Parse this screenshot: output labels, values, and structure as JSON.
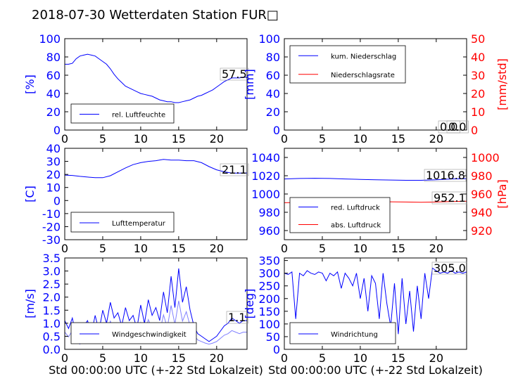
{
  "title": "2018-07-30 Wetterdaten Station FUR□",
  "colors": {
    "blue": "#0000ff",
    "red": "#ff0000",
    "lightblue": "#8080ff"
  },
  "chart_data": [
    {
      "id": "humidity",
      "type": "line",
      "xlabel": "",
      "ylabel": "[%]",
      "ylabel_color": "blue",
      "xlim": [
        0,
        24
      ],
      "ylim": [
        0,
        100
      ],
      "yticks": [
        0,
        20,
        40,
        60,
        80,
        100
      ],
      "xticks": [
        0,
        5,
        10,
        15,
        20
      ],
      "legend": "bottom-left",
      "annotation": "57.5",
      "series": [
        {
          "name": "rel. Luftfeuchte",
          "color": "blue",
          "x": [
            0,
            0.5,
            1,
            1.5,
            2,
            2.5,
            3,
            3.5,
            4,
            4.5,
            5,
            5.5,
            6,
            6.5,
            7,
            7.5,
            8,
            8.5,
            9,
            9.5,
            10,
            10.5,
            11,
            11.5,
            12,
            12.5,
            13,
            13.5,
            14,
            14.5,
            15,
            15.5,
            16,
            16.5,
            17,
            17.5,
            18,
            18.5,
            19,
            19.5,
            20,
            20.5,
            21,
            21.5,
            22,
            22.5,
            23,
            23.5,
            24
          ],
          "y": [
            72,
            72,
            73,
            78,
            81,
            82,
            83,
            82,
            81,
            78,
            75,
            72,
            67,
            61,
            56,
            52,
            48,
            46,
            44,
            42,
            40,
            39,
            38,
            37,
            35,
            33,
            32,
            31,
            31,
            30,
            30,
            31,
            32,
            33,
            35,
            37,
            38,
            40,
            42,
            44,
            47,
            50,
            53,
            55,
            57,
            57,
            57,
            58,
            57.5
          ]
        }
      ]
    },
    {
      "id": "precip",
      "type": "line",
      "xlabel": "",
      "ylabel": "[mm]",
      "ylabel_color": "blue",
      "ylabel_right": "[mm/std]",
      "ylabel_right_color": "red",
      "xlim": [
        0,
        24
      ],
      "ylim": [
        0,
        100
      ],
      "ylim_right": [
        0,
        50
      ],
      "yticks": [
        0,
        20,
        40,
        60,
        80,
        100
      ],
      "yticks_right": [
        0,
        10,
        20,
        30,
        40,
        50
      ],
      "xticks": [
        0,
        5,
        10,
        15,
        20
      ],
      "legend": "top-left",
      "annotations": [
        "0.0",
        "0.0"
      ],
      "series": [
        {
          "name": "kum. Niederschlag",
          "color": "blue",
          "x": [
            0,
            24
          ],
          "y": [
            0,
            0
          ]
        },
        {
          "name": "Niederschlagsrate",
          "color": "red",
          "x": [
            0,
            24
          ],
          "y": [
            0,
            0
          ]
        }
      ]
    },
    {
      "id": "temperature",
      "type": "line",
      "xlabel": "",
      "ylabel": "[C]",
      "ylabel_color": "blue",
      "xlim": [
        0,
        24
      ],
      "ylim": [
        -30,
        40
      ],
      "yticks": [
        -30,
        -20,
        -10,
        0,
        10,
        20,
        30,
        40
      ],
      "xticks": [
        0,
        5,
        10,
        15,
        20
      ],
      "legend": "bottom-left",
      "annotation": "21.1",
      "series": [
        {
          "name": "Lufttemperatur",
          "color": "blue",
          "x": [
            0,
            1,
            2,
            3,
            4,
            5,
            6,
            7,
            8,
            9,
            10,
            11,
            12,
            13,
            14,
            15,
            16,
            17,
            18,
            19,
            20,
            21,
            22,
            23,
            24
          ],
          "y": [
            19.5,
            19.2,
            18.5,
            18,
            17.5,
            17.5,
            19,
            22,
            25,
            27.5,
            29,
            30,
            30.5,
            31.5,
            31,
            31,
            30.5,
            30.5,
            29,
            26,
            23.5,
            22,
            21,
            21,
            21.1
          ]
        }
      ]
    },
    {
      "id": "pressure",
      "type": "line",
      "xlabel": "",
      "ylabel": "",
      "ylabel_right": "[hPa]",
      "ylabel_right_color": "red",
      "xlim": [
        0,
        24
      ],
      "ylim": [
        950,
        1050
      ],
      "ylim_right": [
        910,
        1010
      ],
      "yticks": [
        960,
        980,
        1000,
        1020,
        1040
      ],
      "yticks_right": [
        920,
        940,
        960,
        980,
        1000
      ],
      "xticks": [
        0,
        5,
        10,
        15,
        20
      ],
      "legend": "bottom-left",
      "annotations": [
        "1016.8",
        "952.1"
      ],
      "series": [
        {
          "name": "red. Luftdruck",
          "color": "blue",
          "x": [
            0,
            2,
            4,
            6,
            8,
            10,
            12,
            14,
            16,
            17,
            18,
            20,
            22,
            24
          ],
          "y": [
            1016.5,
            1017,
            1017.2,
            1017,
            1016.5,
            1016,
            1015.5,
            1015.3,
            1015,
            1015,
            1015,
            1015.5,
            1016.5,
            1016.8
          ]
        },
        {
          "name": "abs. Luftdruck",
          "color": "red",
          "x": [
            0,
            2,
            4,
            6,
            8,
            10,
            12,
            14,
            16,
            18,
            20,
            22,
            24
          ],
          "y": [
            950.5,
            950.8,
            951.2,
            952.3,
            952.5,
            952,
            951.8,
            951.5,
            951.2,
            951,
            951.2,
            951.8,
            952.1
          ]
        }
      ]
    },
    {
      "id": "windspeed",
      "type": "line",
      "xlabel": "Std 00:00:00 UTC (+-22 Std Lokalzeit)",
      "ylabel": "[m/s]",
      "ylabel_color": "blue",
      "xlim": [
        0,
        24
      ],
      "ylim": [
        0,
        3.5
      ],
      "yticks": [
        0.0,
        0.5,
        1.0,
        1.5,
        2.0,
        2.5,
        3.0,
        3.5
      ],
      "xticks": [
        0,
        5,
        10,
        15,
        20
      ],
      "legend": "bottom-center",
      "annotation": "1.1",
      "series": [
        {
          "name": "Windgeschwindigkeit",
          "color": "blue",
          "x": [
            0,
            0.5,
            1,
            1.5,
            2,
            2.5,
            3,
            3.5,
            4,
            4.5,
            5,
            5.5,
            6,
            6.5,
            7,
            7.5,
            8,
            8.5,
            9,
            9.5,
            10,
            10.5,
            11,
            11.5,
            12,
            12.5,
            13,
            13.5,
            14,
            14.5,
            15,
            15.5,
            16,
            16.5,
            17,
            17.5,
            18,
            18.5,
            19,
            19.5,
            20,
            20.5,
            21,
            21.5,
            22,
            22.5,
            23,
            23.5,
            24
          ],
          "y": [
            1.1,
            0.8,
            1.2,
            0.5,
            0.3,
            0.9,
            1.1,
            0.6,
            1.3,
            0.7,
            1.5,
            1.0,
            1.8,
            1.2,
            1.4,
            0.9,
            1.6,
            1.1,
            1.3,
            0.8,
            1.7,
            1.0,
            1.9,
            1.3,
            1.6,
            1.1,
            2.2,
            1.4,
            2.8,
            1.6,
            3.1,
            1.8,
            2.4,
            1.5,
            0.9,
            0.6,
            0.5,
            0.4,
            0.3,
            0.4,
            0.5,
            0.7,
            0.9,
            1.0,
            1.2,
            1.1,
            1.0,
            1.1,
            1.1
          ]
        }
      ]
    },
    {
      "id": "winddir",
      "type": "line",
      "xlabel": "Std 00:00:00 UTC (+-22 Std Lokalzeit)",
      "ylabel": "[deg]",
      "ylabel_color": "blue",
      "xlim": [
        0,
        24
      ],
      "ylim": [
        0,
        360
      ],
      "yticks": [
        0,
        50,
        100,
        150,
        200,
        250,
        300,
        350
      ],
      "xticks": [
        0,
        5,
        10,
        15,
        20
      ],
      "legend": "bottom-left",
      "annotation": "305.0",
      "series": [
        {
          "name": "Windrichtung",
          "color": "blue",
          "x": [
            0,
            0.5,
            1,
            1.5,
            2,
            2.5,
            3,
            3.5,
            4,
            4.5,
            5,
            5.5,
            6,
            6.5,
            7,
            7.5,
            8,
            8.5,
            9,
            9.5,
            10,
            10.5,
            11,
            11.5,
            12,
            12.5,
            13,
            13.5,
            14,
            14.5,
            15,
            15.5,
            16,
            16.5,
            17,
            17.5,
            18,
            18.5,
            19,
            19.5,
            20,
            20.5,
            21,
            21.5,
            22,
            22.5,
            23,
            23.5,
            24
          ],
          "y": [
            300,
            295,
            305,
            120,
            300,
            290,
            310,
            300,
            295,
            305,
            300,
            270,
            300,
            290,
            305,
            240,
            300,
            280,
            250,
            300,
            200,
            280,
            150,
            290,
            260,
            120,
            300,
            180,
            90,
            260,
            60,
            280,
            100,
            230,
            70,
            250,
            120,
            300,
            200,
            320,
            310,
            300,
            305,
            300,
            310,
            300,
            305,
            300,
            305
          ]
        }
      ]
    }
  ]
}
